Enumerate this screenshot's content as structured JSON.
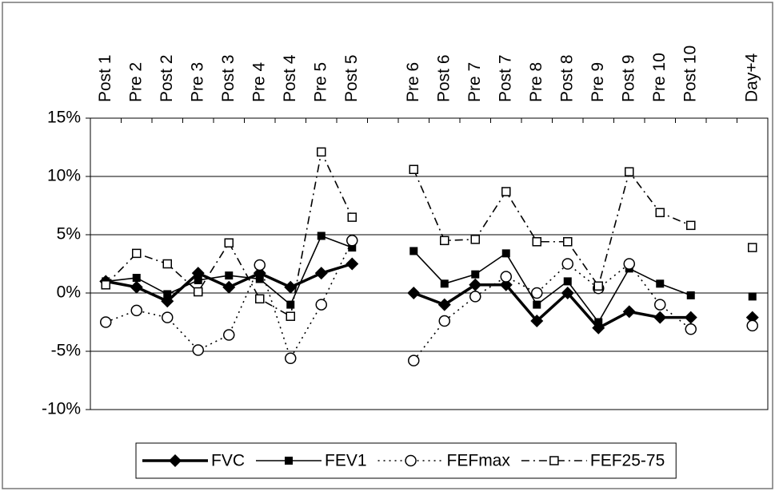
{
  "chart_data": {
    "type": "line",
    "categories": [
      "Post 1",
      "Pre 2",
      "Post 2",
      "Pre 3",
      "Post 3",
      "Pre 4",
      "Post 4",
      "Pre 5",
      "Post 5",
      null,
      "Pre 6",
      "Post 6",
      "Pre 7",
      "Post 7",
      "Pre 8",
      "Post 8",
      "Pre 9",
      "Post 9",
      "Pre 10",
      "Post 10",
      null,
      "Day+4"
    ],
    "ylim": [
      -10,
      15
    ],
    "yticks": [
      {
        "value": -10,
        "label": "-10%"
      },
      {
        "value": -5,
        "label": "-5%"
      },
      {
        "value": 0,
        "label": "0%"
      },
      {
        "value": 5,
        "label": "5%"
      },
      {
        "value": 10,
        "label": "10%"
      },
      {
        "value": 15,
        "label": "15%"
      }
    ],
    "grid": true,
    "legend": "bottom",
    "series": [
      {
        "name": "FVC",
        "color": "#000000",
        "marker": "diamond",
        "line_style": "solid-thick",
        "values": [
          1.0,
          0.5,
          -0.7,
          1.7,
          0.5,
          1.7,
          0.5,
          1.7,
          2.5,
          null,
          0,
          -1.0,
          0.7,
          0.7,
          -2.4,
          0,
          -3.0,
          -1.6,
          -2.1,
          -2.1,
          null,
          -2.1
        ]
      },
      {
        "name": "FEV1",
        "color": "#000000",
        "marker": "square",
        "line_style": "solid",
        "values": [
          1.0,
          1.3,
          -0.1,
          1.1,
          1.5,
          1.2,
          -1.0,
          4.9,
          3.9,
          null,
          3.6,
          0.8,
          1.6,
          3.4,
          -1.0,
          1.0,
          -2.5,
          2.1,
          0.8,
          -0.2,
          null,
          -0.3
        ]
      },
      {
        "name": "FEFmax",
        "color": "#000000",
        "marker": "circle-open",
        "line_style": "dotted",
        "values": [
          -2.5,
          -1.5,
          -2.1,
          -4.9,
          -3.6,
          2.4,
          -5.6,
          -1.0,
          4.5,
          null,
          -5.8,
          -2.4,
          -0.3,
          1.4,
          0,
          2.5,
          0.4,
          2.5,
          -1.0,
          -3.1,
          null,
          -2.8
        ]
      },
      {
        "name": "FEF25-75",
        "color": "#000000",
        "marker": "square-open",
        "line_style": "dash-dot",
        "values": [
          0.7,
          3.4,
          2.5,
          0.1,
          4.3,
          -0.5,
          -2.0,
          12.1,
          6.5,
          null,
          10.6,
          4.5,
          4.6,
          8.7,
          4.4,
          4.4,
          0.6,
          10.4,
          6.9,
          5.8,
          null,
          3.9
        ]
      }
    ]
  }
}
